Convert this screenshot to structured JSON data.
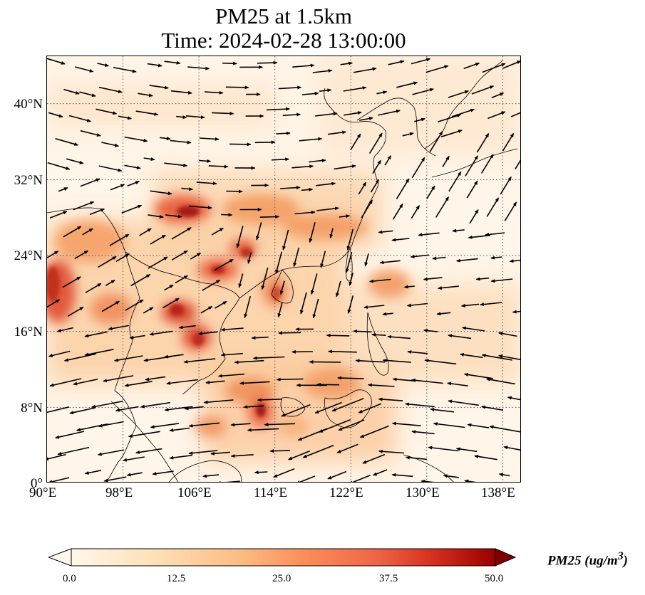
{
  "title": {
    "line1": "PM25 at 1.5km",
    "line2": "Time: 2024-02-28 13:00:00"
  },
  "map": {
    "variable": "PM25",
    "level": "1.5km",
    "time": "2024-02-28 13:00:00",
    "extent": {
      "lon_min": 90,
      "lon_max": 140,
      "lat_min": 0,
      "lat_max": 45
    },
    "gridlines": "dotted",
    "lat_ticks": [
      "0°",
      "8°N",
      "16°N",
      "24°N",
      "32°N",
      "40°N"
    ],
    "lon_ticks": [
      "90°E",
      "98°E",
      "106°E",
      "114°E",
      "122°E",
      "130°E",
      "138°E"
    ],
    "colormap": "OrRd",
    "colors": {
      "low": "#fff7ec",
      "mid": "#f5a06b",
      "high": "#7f0000",
      "coast": "#000000"
    }
  },
  "colorbar": {
    "ticks": [
      "0.0",
      "12.5",
      "25.0",
      "37.5",
      "50.0"
    ],
    "min": 0,
    "max": 50,
    "extend": "both",
    "label_main": "PM25 (ug/m",
    "label_sup": "3",
    "label_end": ")"
  }
}
